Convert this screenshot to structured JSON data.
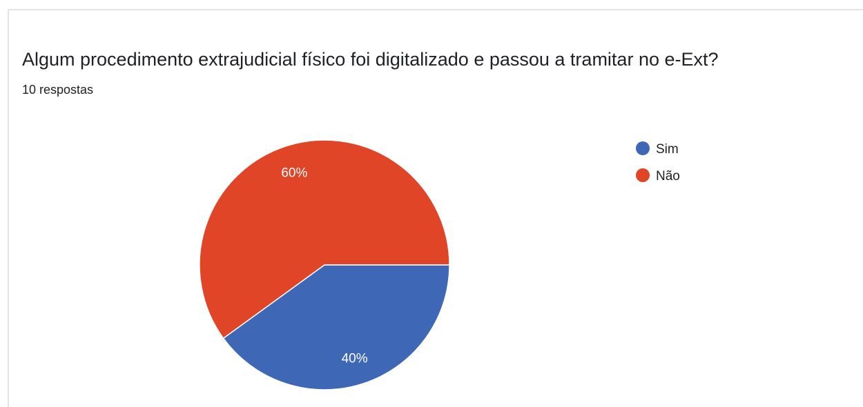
{
  "chart_data": {
    "type": "pie",
    "title": "Algum procedimento extrajudicial físico foi digitalizado e passou a tramitar no e-Ext?",
    "subtitle": "10 respostas",
    "categories": [
      "Sim",
      "Não"
    ],
    "values": [
      40,
      60
    ],
    "value_labels": [
      "40%",
      "60%"
    ],
    "colors": [
      "#3e67b5",
      "#e04527"
    ]
  }
}
